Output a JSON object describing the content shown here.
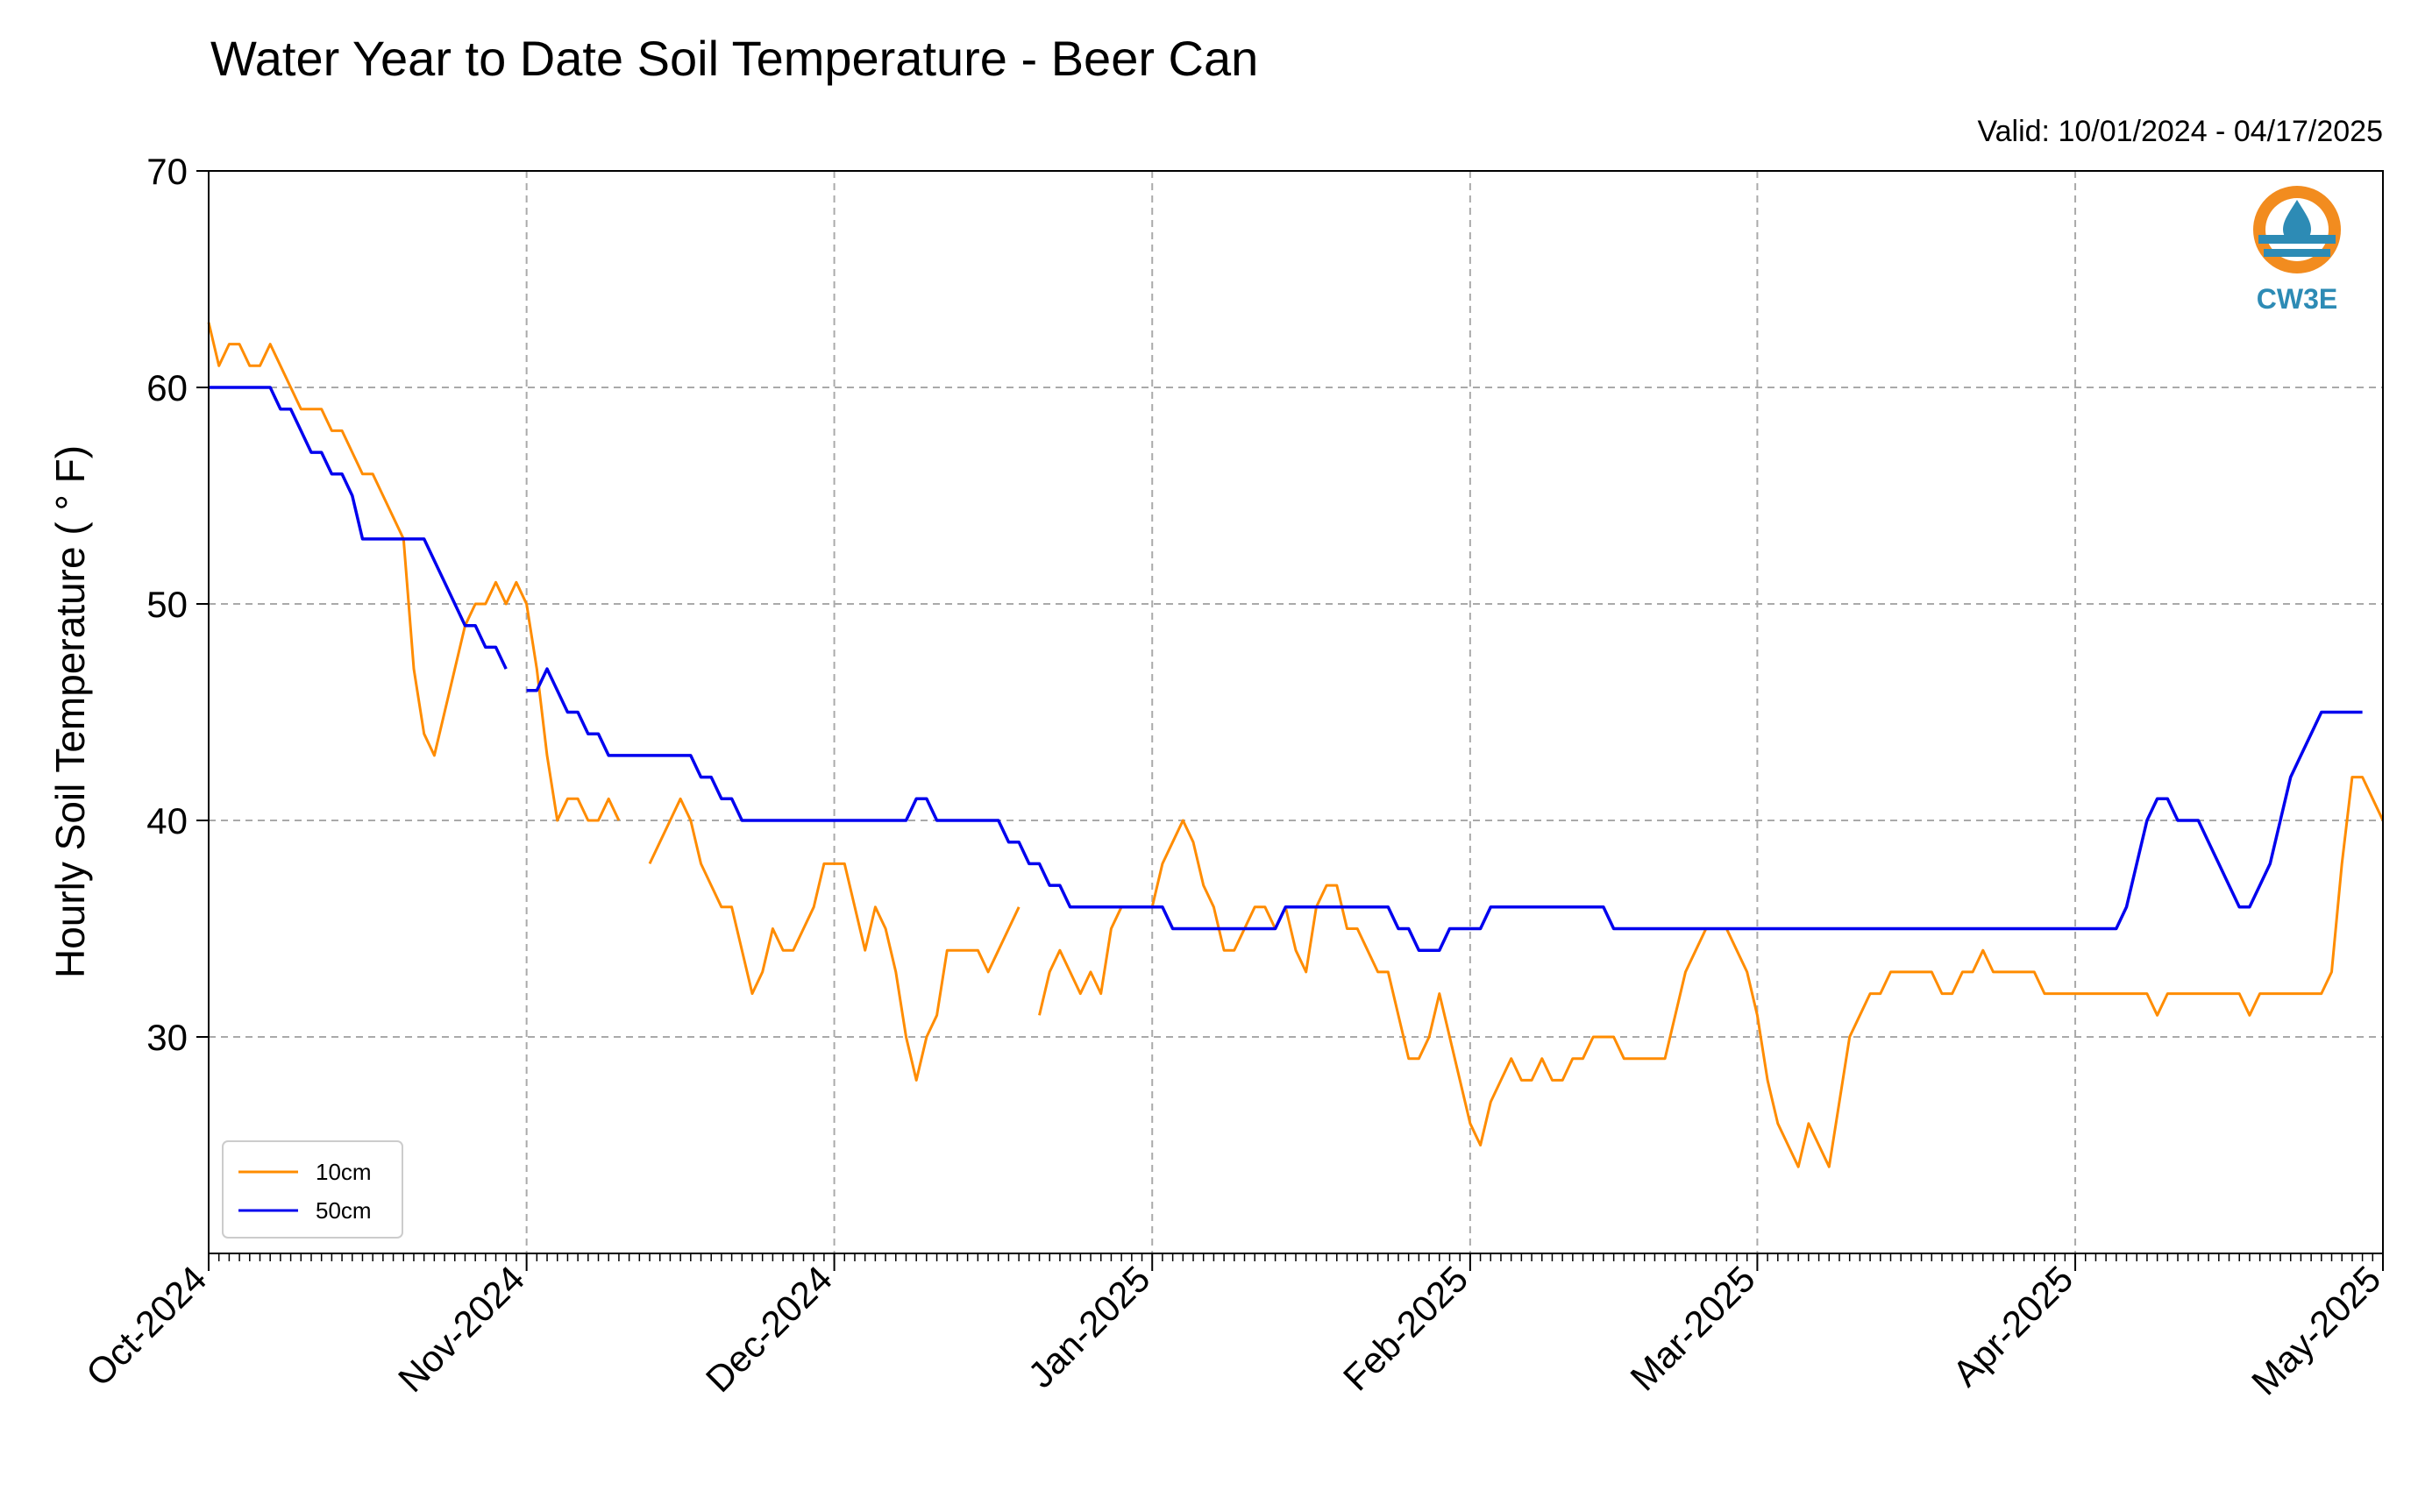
{
  "title": "Water Year to Date Soil Temperature - Beer Can",
  "valid_text": "Valid: 10/01/2024 - 04/17/2025",
  "logo": {
    "text": "CW3E",
    "icon": "water-drop-icon",
    "colors": [
      "#f28c1f",
      "#2d8bb5"
    ]
  },
  "chart_data": {
    "type": "line",
    "title": "Water Year to Date Soil Temperature - Beer Can",
    "ylabel": "Hourly Soil Temperature ( ° F)",
    "xlabel": "",
    "ylim": [
      20,
      70
    ],
    "xlim": [
      "2024-10-01",
      "2025-05-01"
    ],
    "yticks": [
      30,
      40,
      50,
      60,
      70
    ],
    "xticks": [
      {
        "date": "2024-10-01",
        "label": "Oct-2024"
      },
      {
        "date": "2024-11-01",
        "label": "Nov-2024"
      },
      {
        "date": "2024-12-01",
        "label": "Dec-2024"
      },
      {
        "date": "2025-01-01",
        "label": "Jan-2025"
      },
      {
        "date": "2025-02-01",
        "label": "Feb-2025"
      },
      {
        "date": "2025-03-01",
        "label": "Mar-2025"
      },
      {
        "date": "2025-04-01",
        "label": "Apr-2025"
      },
      {
        "date": "2025-05-01",
        "label": "May-2025"
      }
    ],
    "grid": true,
    "legend_position": "lower-left",
    "series": [
      {
        "name": "10cm",
        "color": "#ff8c00",
        "points": [
          [
            "2024-10-01",
            63
          ],
          [
            "2024-10-02",
            61
          ],
          [
            "2024-10-03",
            62
          ],
          [
            "2024-10-04",
            62
          ],
          [
            "2024-10-05",
            61
          ],
          [
            "2024-10-06",
            61
          ],
          [
            "2024-10-07",
            62
          ],
          [
            "2024-10-08",
            61
          ],
          [
            "2024-10-09",
            60
          ],
          [
            "2024-10-10",
            59
          ],
          [
            "2024-10-11",
            59
          ],
          [
            "2024-10-12",
            59
          ],
          [
            "2024-10-13",
            58
          ],
          [
            "2024-10-14",
            58
          ],
          [
            "2024-10-15",
            57
          ],
          [
            "2024-10-16",
            56
          ],
          [
            "2024-10-17",
            56
          ],
          [
            "2024-10-18",
            55
          ],
          [
            "2024-10-19",
            54
          ],
          [
            "2024-10-20",
            53
          ],
          [
            "2024-10-21",
            47
          ],
          [
            "2024-10-22",
            44
          ],
          [
            "2024-10-23",
            43
          ],
          [
            "2024-10-24",
            45
          ],
          [
            "2024-10-25",
            47
          ],
          [
            "2024-10-26",
            49
          ],
          [
            "2024-10-27",
            50
          ],
          [
            "2024-10-28",
            50
          ],
          [
            "2024-10-29",
            51
          ],
          [
            "2024-10-30",
            50
          ],
          [
            "2024-10-31",
            51
          ],
          [
            "2024-11-01",
            50
          ],
          [
            "2024-11-02",
            47
          ],
          [
            "2024-11-03",
            43
          ],
          [
            "2024-11-04",
            40
          ],
          [
            "2024-11-05",
            41
          ],
          [
            "2024-11-06",
            41
          ],
          [
            "2024-11-07",
            40
          ],
          [
            "2024-11-08",
            40
          ],
          [
            "2024-11-09",
            41
          ],
          [
            "2024-11-10",
            40
          ],
          [
            "2024-11-11",
            null
          ],
          [
            "2024-11-12",
            null
          ],
          [
            "2024-11-13",
            38
          ],
          [
            "2024-11-14",
            39
          ],
          [
            "2024-11-15",
            40
          ],
          [
            "2024-11-16",
            41
          ],
          [
            "2024-11-17",
            40
          ],
          [
            "2024-11-18",
            38
          ],
          [
            "2024-11-19",
            37
          ],
          [
            "2024-11-20",
            36
          ],
          [
            "2024-11-21",
            36
          ],
          [
            "2024-11-22",
            34
          ],
          [
            "2024-11-23",
            32
          ],
          [
            "2024-11-24",
            33
          ],
          [
            "2024-11-25",
            35
          ],
          [
            "2024-11-26",
            34
          ],
          [
            "2024-11-27",
            34
          ],
          [
            "2024-11-28",
            35
          ],
          [
            "2024-11-29",
            36
          ],
          [
            "2024-11-30",
            38
          ],
          [
            "2024-12-01",
            38
          ],
          [
            "2024-12-02",
            38
          ],
          [
            "2024-12-03",
            36
          ],
          [
            "2024-12-04",
            34
          ],
          [
            "2024-12-05",
            36
          ],
          [
            "2024-12-06",
            35
          ],
          [
            "2024-12-07",
            33
          ],
          [
            "2024-12-08",
            30
          ],
          [
            "2024-12-09",
            28
          ],
          [
            "2024-12-10",
            30
          ],
          [
            "2024-12-11",
            31
          ],
          [
            "2024-12-12",
            34
          ],
          [
            "2024-12-13",
            34
          ],
          [
            "2024-12-14",
            34
          ],
          [
            "2024-12-15",
            34
          ],
          [
            "2024-12-16",
            33
          ],
          [
            "2024-12-17",
            34
          ],
          [
            "2024-12-18",
            35
          ],
          [
            "2024-12-19",
            36
          ],
          [
            "2024-12-20",
            null
          ],
          [
            "2024-12-21",
            31
          ],
          [
            "2024-12-22",
            33
          ],
          [
            "2024-12-23",
            34
          ],
          [
            "2024-12-24",
            33
          ],
          [
            "2024-12-25",
            32
          ],
          [
            "2024-12-26",
            33
          ],
          [
            "2024-12-27",
            32
          ],
          [
            "2024-12-28",
            35
          ],
          [
            "2024-12-29",
            36
          ],
          [
            "2024-12-30",
            36
          ],
          [
            "2024-12-31",
            36
          ],
          [
            "2025-01-01",
            36
          ],
          [
            "2025-01-02",
            38
          ],
          [
            "2025-01-03",
            39
          ],
          [
            "2025-01-04",
            40
          ],
          [
            "2025-01-05",
            39
          ],
          [
            "2025-01-06",
            37
          ],
          [
            "2025-01-07",
            36
          ],
          [
            "2025-01-08",
            34
          ],
          [
            "2025-01-09",
            34
          ],
          [
            "2025-01-10",
            35
          ],
          [
            "2025-01-11",
            36
          ],
          [
            "2025-01-12",
            36
          ],
          [
            "2025-01-13",
            35
          ],
          [
            "2025-01-14",
            36
          ],
          [
            "2025-01-15",
            34
          ],
          [
            "2025-01-16",
            33
          ],
          [
            "2025-01-17",
            36
          ],
          [
            "2025-01-18",
            37
          ],
          [
            "2025-01-19",
            37
          ],
          [
            "2025-01-20",
            35
          ],
          [
            "2025-01-21",
            35
          ],
          [
            "2025-01-22",
            34
          ],
          [
            "2025-01-23",
            33
          ],
          [
            "2025-01-24",
            33
          ],
          [
            "2025-01-25",
            31
          ],
          [
            "2025-01-26",
            29
          ],
          [
            "2025-01-27",
            29
          ],
          [
            "2025-01-28",
            30
          ],
          [
            "2025-01-29",
            32
          ],
          [
            "2025-01-30",
            30
          ],
          [
            "2025-01-31",
            28
          ],
          [
            "2025-02-01",
            26
          ],
          [
            "2025-02-02",
            25
          ],
          [
            "2025-02-03",
            27
          ],
          [
            "2025-02-04",
            28
          ],
          [
            "2025-02-05",
            29
          ],
          [
            "2025-02-06",
            28
          ],
          [
            "2025-02-07",
            28
          ],
          [
            "2025-02-08",
            29
          ],
          [
            "2025-02-09",
            28
          ],
          [
            "2025-02-10",
            28
          ],
          [
            "2025-02-11",
            29
          ],
          [
            "2025-02-12",
            29
          ],
          [
            "2025-02-13",
            30
          ],
          [
            "2025-02-14",
            30
          ],
          [
            "2025-02-15",
            30
          ],
          [
            "2025-02-16",
            29
          ],
          [
            "2025-02-17",
            29
          ],
          [
            "2025-02-18",
            29
          ],
          [
            "2025-02-19",
            29
          ],
          [
            "2025-02-20",
            29
          ],
          [
            "2025-02-21",
            31
          ],
          [
            "2025-02-22",
            33
          ],
          [
            "2025-02-23",
            34
          ],
          [
            "2025-02-24",
            35
          ],
          [
            "2025-02-25",
            35
          ],
          [
            "2025-02-26",
            35
          ],
          [
            "2025-02-27",
            34
          ],
          [
            "2025-02-28",
            33
          ],
          [
            "2025-03-01",
            31
          ],
          [
            "2025-03-02",
            28
          ],
          [
            "2025-03-03",
            26
          ],
          [
            "2025-03-04",
            25
          ],
          [
            "2025-03-05",
            24
          ],
          [
            "2025-03-06",
            26
          ],
          [
            "2025-03-07",
            25
          ],
          [
            "2025-03-08",
            24
          ],
          [
            "2025-03-09",
            27
          ],
          [
            "2025-03-10",
            30
          ],
          [
            "2025-03-11",
            31
          ],
          [
            "2025-03-12",
            32
          ],
          [
            "2025-03-13",
            32
          ],
          [
            "2025-03-14",
            33
          ],
          [
            "2025-03-15",
            33
          ],
          [
            "2025-03-16",
            33
          ],
          [
            "2025-03-17",
            33
          ],
          [
            "2025-03-18",
            33
          ],
          [
            "2025-03-19",
            32
          ],
          [
            "2025-03-20",
            32
          ],
          [
            "2025-03-21",
            33
          ],
          [
            "2025-03-22",
            33
          ],
          [
            "2025-03-23",
            34
          ],
          [
            "2025-03-24",
            33
          ],
          [
            "2025-03-25",
            33
          ],
          [
            "2025-03-26",
            33
          ],
          [
            "2025-03-27",
            33
          ],
          [
            "2025-03-28",
            33
          ],
          [
            "2025-03-29",
            32
          ],
          [
            "2025-03-30",
            32
          ],
          [
            "2025-03-31",
            32
          ],
          [
            "2025-04-01",
            32
          ],
          [
            "2025-04-02",
            32
          ],
          [
            "2025-04-03",
            32
          ],
          [
            "2025-04-04",
            32
          ],
          [
            "2025-04-05",
            32
          ],
          [
            "2025-04-06",
            32
          ],
          [
            "2025-04-07",
            32
          ],
          [
            "2025-04-08",
            32
          ],
          [
            "2025-04-09",
            31
          ],
          [
            "2025-04-10",
            32
          ],
          [
            "2025-04-11",
            32
          ],
          [
            "2025-04-12",
            32
          ],
          [
            "2025-04-13",
            32
          ],
          [
            "2025-04-14",
            32
          ],
          [
            "2025-04-15",
            32
          ],
          [
            "2025-04-16",
            32
          ],
          [
            "2025-04-17",
            32
          ],
          [
            "2025-04-18",
            31
          ],
          [
            "2025-04-19",
            32
          ],
          [
            "2025-04-20",
            32
          ],
          [
            "2025-04-21",
            32
          ],
          [
            "2025-04-22",
            32
          ],
          [
            "2025-04-23",
            32
          ],
          [
            "2025-04-24",
            32
          ],
          [
            "2025-04-25",
            32
          ],
          [
            "2025-04-26",
            33
          ],
          [
            "2025-04-27",
            38
          ],
          [
            "2025-04-28",
            42
          ],
          [
            "2025-04-29",
            42
          ],
          [
            "2025-04-30",
            41
          ],
          [
            "2025-05-01",
            40
          ]
        ]
      },
      {
        "name": "50cm",
        "color": "#0000ee",
        "points": []
      }
    ]
  }
}
